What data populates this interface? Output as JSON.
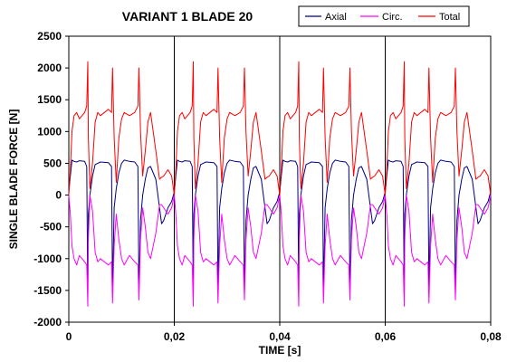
{
  "chart_data": {
    "type": "line",
    "title": "VARIANT 1 BLADE 20",
    "xlabel": "TIME [s]",
    "ylabel": "SINGLE BLADE FORCE [N]",
    "xlim": [
      0,
      0.08
    ],
    "ylim": [
      -2000,
      2500
    ],
    "x_ticks": [
      "0",
      "0,02",
      "0,04",
      "0,06",
      "0,08"
    ],
    "x_tick_values": [
      0,
      0.02,
      0.04,
      0.06,
      0.08
    ],
    "y_ticks": [
      "-2000",
      "-1500",
      "-1000",
      "-500",
      "0",
      "500",
      "1000",
      "1500",
      "2000",
      "2500"
    ],
    "y_tick_values": [
      -2000,
      -1500,
      -1000,
      -500,
      0,
      500,
      1000,
      1500,
      2000,
      2500
    ],
    "grid": {
      "x": true,
      "y": false
    },
    "legend_position": "top-right",
    "period": 0.02,
    "series": [
      {
        "name": "Axial",
        "color": "#000080",
        "cycle_x": [
          0,
          0.0003,
          0.0006,
          0.001,
          0.0015,
          0.002,
          0.003,
          0.0034,
          0.0036,
          0.0037,
          0.004,
          0.0045,
          0.005,
          0.0055,
          0.006,
          0.0075,
          0.0081,
          0.0083,
          0.0086,
          0.009,
          0.0095,
          0.01,
          0.0105,
          0.0115,
          0.0125,
          0.0131,
          0.0133,
          0.0136,
          0.014,
          0.0145,
          0.015,
          0.0155,
          0.0165,
          0.0172,
          0.0176,
          0.018,
          0.0188,
          0.0195,
          0.02
        ],
        "cycle_y": [
          50,
          300,
          550,
          530,
          520,
          540,
          530,
          450,
          -1600,
          -300,
          0,
          300,
          480,
          500,
          520,
          510,
          450,
          -1500,
          -200,
          100,
          350,
          500,
          550,
          530,
          520,
          450,
          -1500,
          -400,
          0,
          250,
          430,
          450,
          250,
          -200,
          -450,
          -400,
          -200,
          -100,
          50
        ]
      },
      {
        "name": "Circ.",
        "color": "#ff00ff",
        "cycle_x": [
          0,
          0.0003,
          0.0006,
          0.001,
          0.0015,
          0.002,
          0.003,
          0.0034,
          0.0036,
          0.0037,
          0.004,
          0.0045,
          0.005,
          0.0055,
          0.006,
          0.0075,
          0.0081,
          0.0083,
          0.0086,
          0.009,
          0.0095,
          0.01,
          0.0105,
          0.0115,
          0.0125,
          0.0131,
          0.0133,
          0.0136,
          0.014,
          0.0145,
          0.015,
          0.0155,
          0.0165,
          0.0172,
          0.0176,
          0.018,
          0.0188,
          0.0195,
          0.02
        ],
        "cycle_y": [
          0,
          -300,
          -800,
          -1000,
          -1100,
          -950,
          -1050,
          -1100,
          -1750,
          -700,
          0,
          -250,
          -900,
          -1050,
          -1000,
          -1100,
          -1050,
          -1700,
          -800,
          -300,
          -700,
          -1000,
          -1100,
          -950,
          -1050,
          -1100,
          -1650,
          -700,
          -200,
          -500,
          -900,
          -1000,
          -600,
          -150,
          -150,
          -200,
          -300,
          -200,
          0
        ]
      },
      {
        "name": "Total",
        "color": "#ff0000",
        "cycle_x": [
          0,
          0.0003,
          0.0006,
          0.001,
          0.0015,
          0.002,
          0.003,
          0.0034,
          0.0036,
          0.0037,
          0.004,
          0.0045,
          0.005,
          0.0055,
          0.006,
          0.0075,
          0.0081,
          0.0083,
          0.0086,
          0.009,
          0.0095,
          0.01,
          0.0105,
          0.0115,
          0.0125,
          0.0131,
          0.0133,
          0.0136,
          0.014,
          0.0145,
          0.015,
          0.0155,
          0.0165,
          0.0172,
          0.0176,
          0.018,
          0.0188,
          0.0195,
          0.02
        ],
        "cycle_y": [
          0,
          400,
          1000,
          1250,
          1300,
          1200,
          1300,
          1400,
          2100,
          900,
          100,
          500,
          1150,
          1300,
          1250,
          1350,
          1300,
          2000,
          900,
          200,
          900,
          1200,
          1300,
          1250,
          1300,
          1400,
          2000,
          1000,
          300,
          700,
          1150,
          1300,
          700,
          250,
          280,
          300,
          400,
          300,
          0
        ]
      }
    ],
    "notes": "Periodic signal with period 0.02 s repeated 4 times over 0-0.08 s; values read approximately from the figure."
  }
}
